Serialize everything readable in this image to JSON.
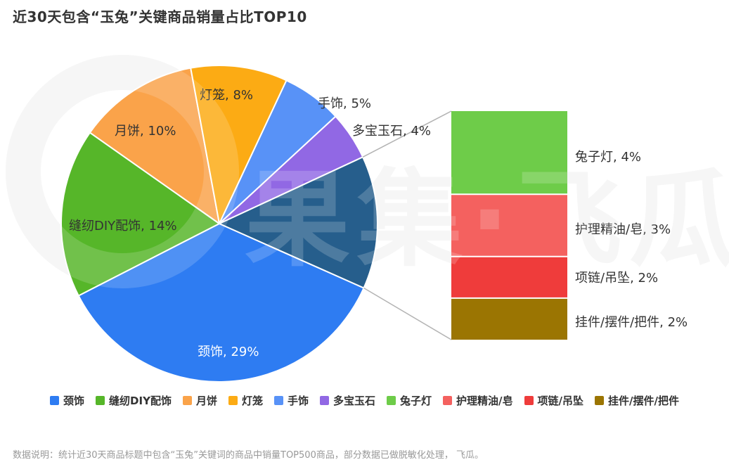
{
  "header": {
    "title": "近30天包含“玉兔”关键商品销量占比TOP10"
  },
  "chart_data": {
    "type": "pie",
    "title": "近30天包含“玉兔”关键商品销量占比TOP10",
    "unit": "%",
    "label_format": "name, value%",
    "series": [
      {
        "name": "颈饰",
        "value": 29,
        "color": "#2e7cf2",
        "label_position": "inside",
        "label_color": "#ffffff"
      },
      {
        "name": "缝纫DIY配饰",
        "value": 14,
        "color": "#56b629",
        "label_position": "inside",
        "label_color": "#333333"
      },
      {
        "name": "月饼",
        "value": 10,
        "color": "#faa34a",
        "label_position": "inside",
        "label_color": "#333333"
      },
      {
        "name": "灯笼",
        "value": 8,
        "color": "#fcab14",
        "label_position": "inside",
        "label_color": "#333333"
      },
      {
        "name": "手饰",
        "value": 5,
        "color": "#5892f7",
        "label_position": "outside",
        "label_color": "#333333"
      },
      {
        "name": "多宝玉石",
        "value": 4,
        "color": "#9168e4",
        "label_position": "outside",
        "label_color": "#333333"
      }
    ],
    "breakout": {
      "pie_slice_color": "#265e8c",
      "items": [
        {
          "name": "兔子灯",
          "value": 4,
          "color": "#6ecc49"
        },
        {
          "name": "护理精油/皂",
          "value": 3,
          "color": "#f4615f"
        },
        {
          "name": "项链/吊坠",
          "value": 2,
          "color": "#ef3c3b"
        },
        {
          "name": "挂件/摆件/把件",
          "value": 2,
          "color": "#9b7502"
        }
      ]
    },
    "legend": [
      "颈饰",
      "缝纫DIY配饰",
      "月饼",
      "灯笼",
      "手饰",
      "多宝玉石",
      "兔子灯",
      "护理精油/皂",
      "项链/吊坠",
      "挂件/摆件/把件"
    ],
    "legend_position": "bottom",
    "leader_line_color": "#b3b3b3"
  },
  "watermark": {
    "text": "果集·飞瓜"
  },
  "footer": {
    "note": "数据说明：统计近30天商品标题中包含“玉兔”关键词的商品中销量TOP500商品，部分数据已做脱敏化处理， 飞瓜。"
  }
}
